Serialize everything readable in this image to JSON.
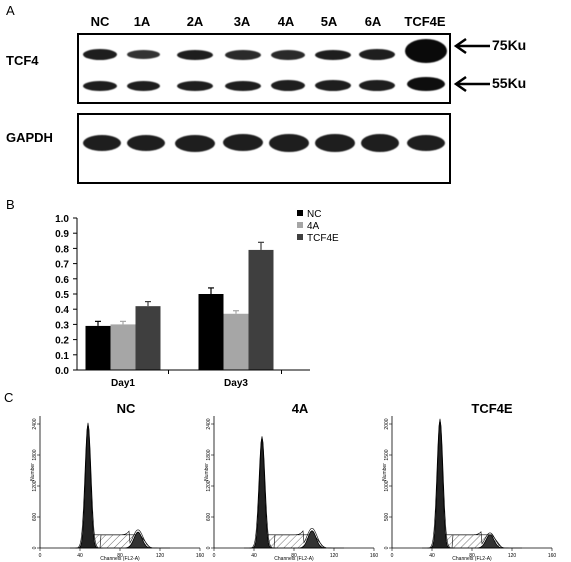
{
  "panels": {
    "a": "A",
    "b": "B",
    "c": "C"
  },
  "blot": {
    "lanes": [
      "NC",
      "1A",
      "2A",
      "3A",
      "4A",
      "5A",
      "6A",
      "TCF4E"
    ],
    "row_labels": {
      "tcf4": "TCF4",
      "gapdh": "GAPDH"
    },
    "size_markers": {
      "upper": "75Ku",
      "lower": "55Ku"
    }
  },
  "chart_data": {
    "type": "bar",
    "categories": [
      "Day1",
      "Day3"
    ],
    "series": [
      {
        "name": "NC",
        "values": [
          0.29,
          0.5
        ],
        "errors": [
          0.03,
          0.04
        ],
        "color": "#000000"
      },
      {
        "name": "4A",
        "values": [
          0.3,
          0.37
        ],
        "errors": [
          0.02,
          0.02
        ],
        "color": "#a6a6a6"
      },
      {
        "name": "TCF4E",
        "values": [
          0.42,
          0.79
        ],
        "errors": [
          0.03,
          0.05
        ],
        "color": "#3f3f3f"
      }
    ],
    "ylim": [
      0.0,
      1.0
    ],
    "yticks": [
      "0.0",
      "0.1",
      "0.2",
      "0.3",
      "0.4",
      "0.5",
      "0.6",
      "0.7",
      "0.8",
      "0.9",
      "1.0"
    ],
    "grid": false,
    "legend": "top-right"
  },
  "flow": {
    "x_label": "Channels (FL2-A)",
    "y_label": "Number",
    "x_ticks": [
      "0",
      "40",
      "80",
      "120",
      "160"
    ],
    "histograms": [
      {
        "title": "NC",
        "y_ticks": [
          "0",
          "600",
          "1200",
          "1800",
          "2400"
        ]
      },
      {
        "title": "4A",
        "y_ticks": [
          "0",
          "600",
          "1200",
          "1800",
          "2400"
        ]
      },
      {
        "title": "TCF4E",
        "y_ticks": [
          "0",
          "500",
          "1000",
          "1500",
          "2000"
        ]
      }
    ]
  }
}
